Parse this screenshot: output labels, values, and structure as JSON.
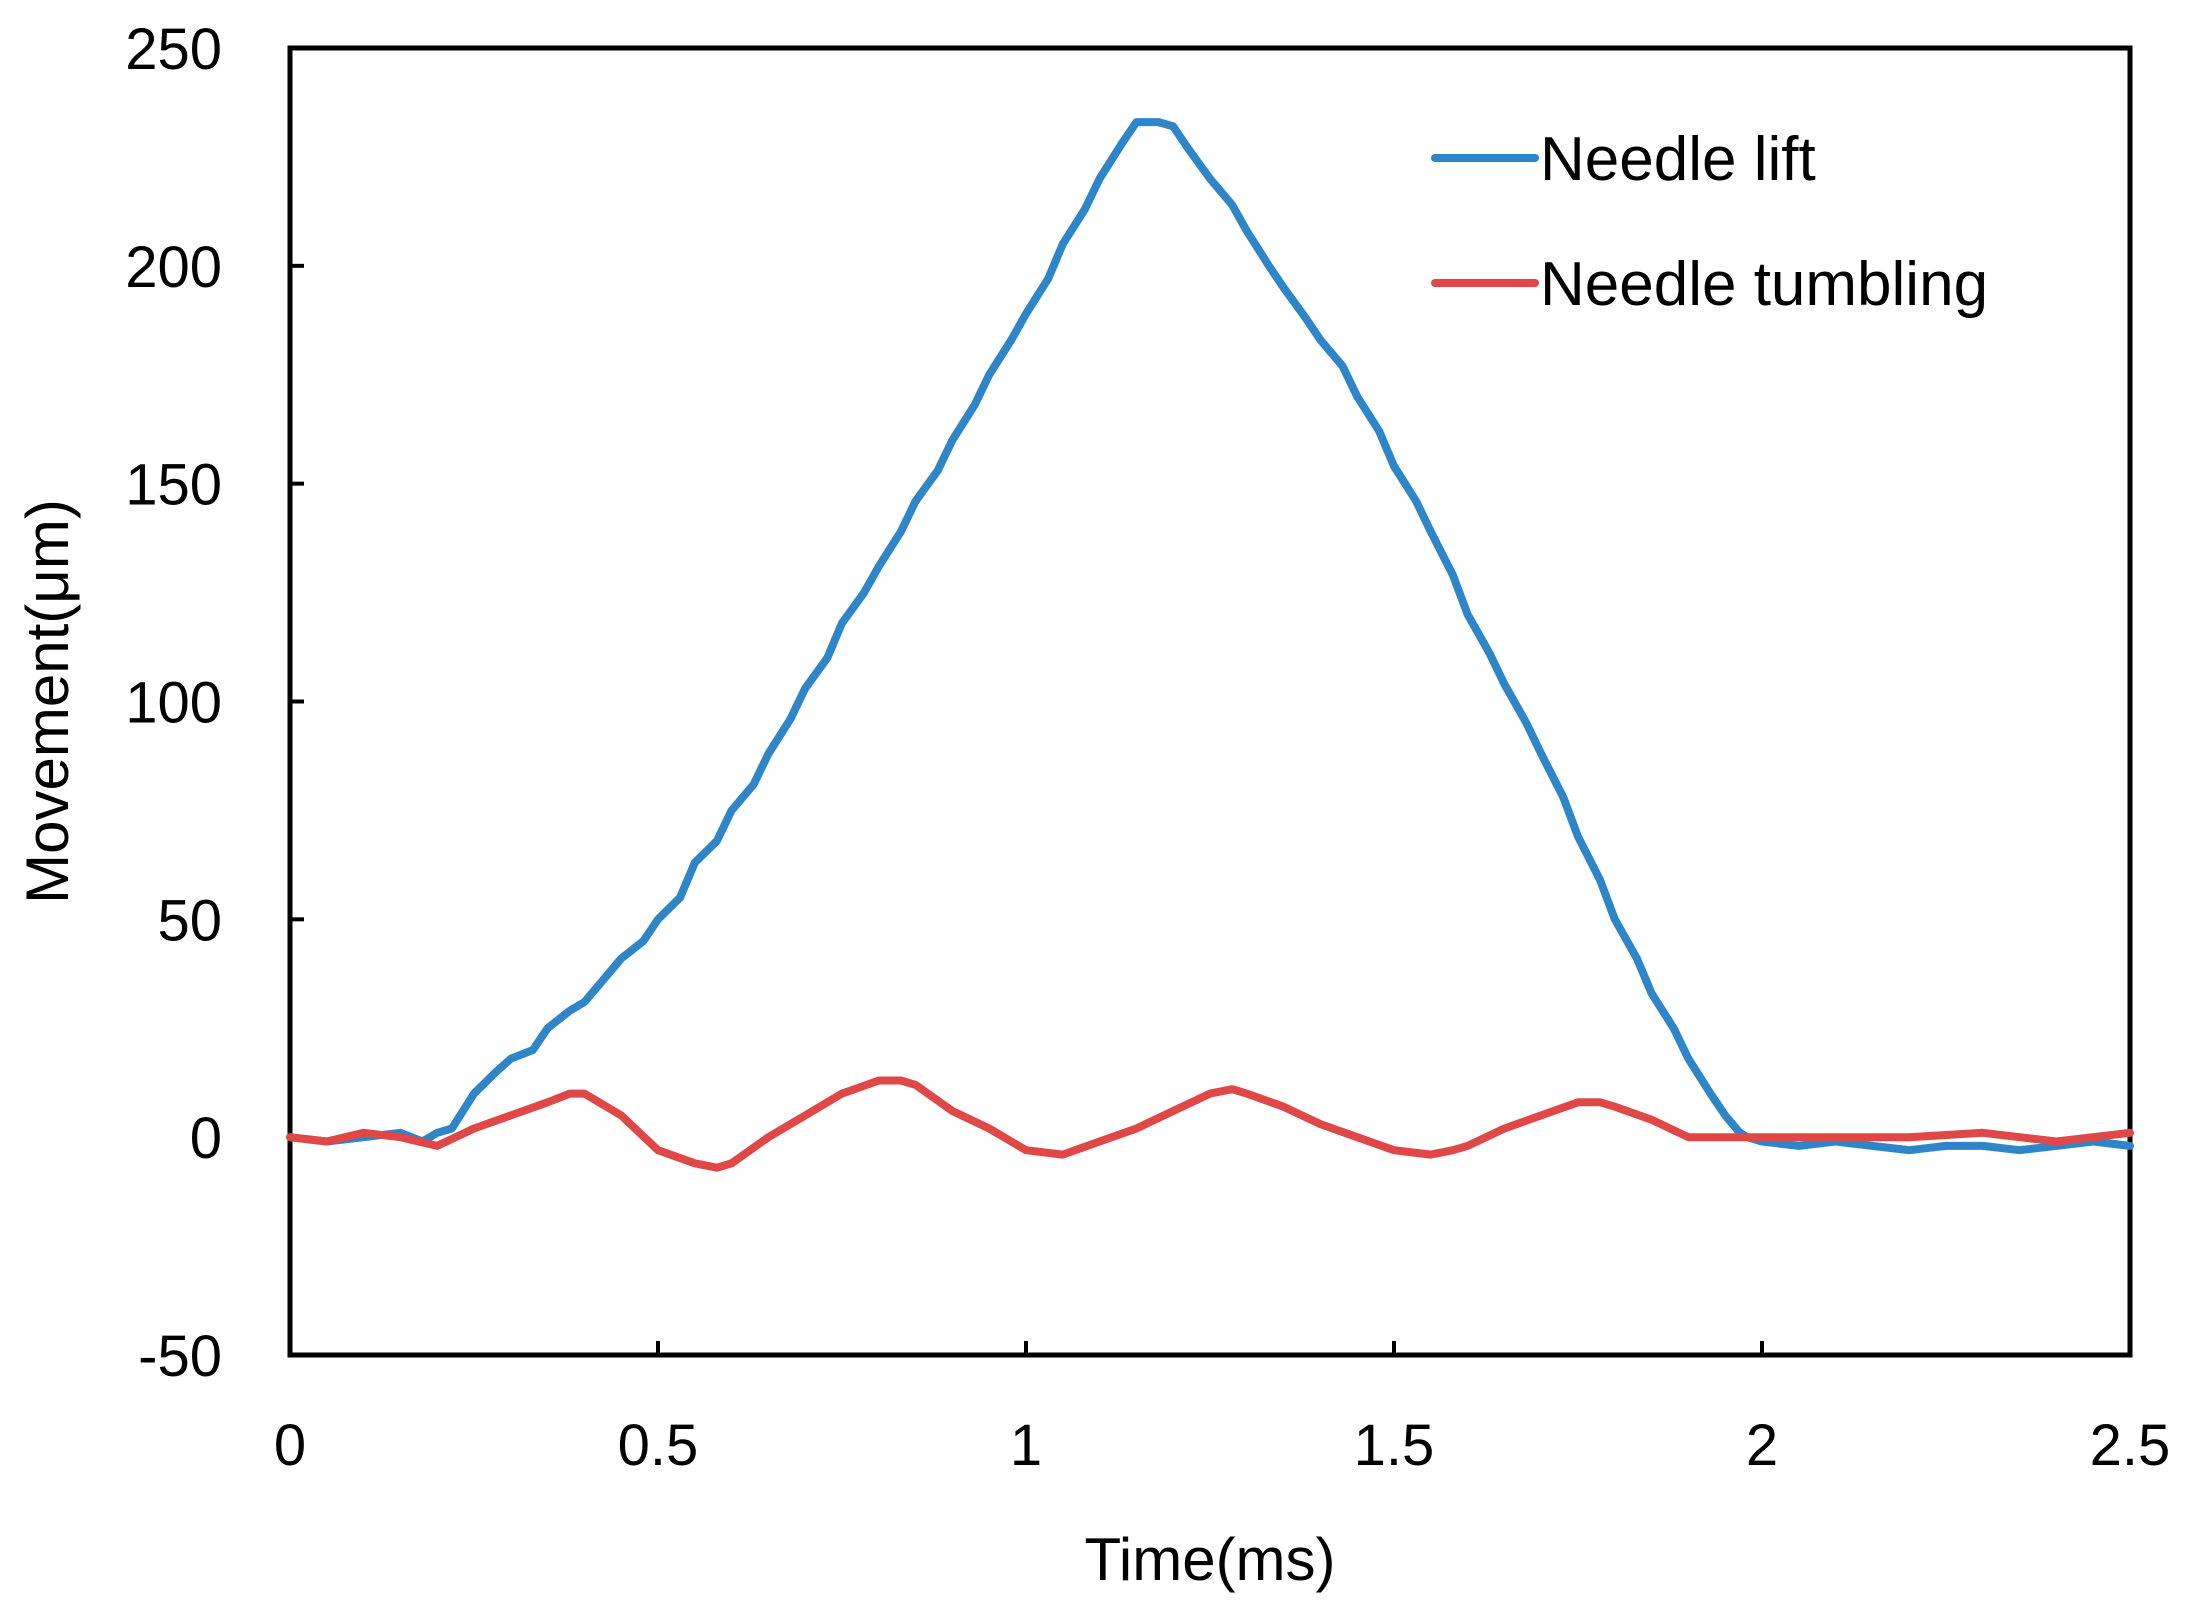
{
  "chart_data": {
    "type": "line",
    "title": "",
    "xlabel": "Time(ms)",
    "ylabel": "Movement(μm)",
    "xlim": [
      0,
      2.5
    ],
    "ylim": [
      -50,
      250
    ],
    "xticks": [
      0,
      0.5,
      1,
      1.5,
      2,
      2.5
    ],
    "xtick_labels": [
      "0",
      "0.5",
      "1",
      "1.5",
      "2",
      "2.5"
    ],
    "yticks": [
      -50,
      0,
      50,
      100,
      150,
      200,
      250
    ],
    "ytick_labels": [
      "-50",
      "0",
      "50",
      "100",
      "150",
      "200",
      "250"
    ],
    "grid": false,
    "legend_position": "top-right",
    "series": [
      {
        "name": "Needle lift",
        "color": "#2E86C8",
        "x": [
          0,
          0.05,
          0.1,
          0.15,
          0.18,
          0.2,
          0.22,
          0.25,
          0.28,
          0.3,
          0.33,
          0.35,
          0.38,
          0.4,
          0.43,
          0.45,
          0.48,
          0.5,
          0.53,
          0.55,
          0.58,
          0.6,
          0.63,
          0.65,
          0.68,
          0.7,
          0.73,
          0.75,
          0.78,
          0.8,
          0.83,
          0.85,
          0.88,
          0.9,
          0.93,
          0.95,
          0.98,
          1.0,
          1.03,
          1.05,
          1.08,
          1.1,
          1.13,
          1.15,
          1.18,
          1.2,
          1.22,
          1.25,
          1.28,
          1.3,
          1.33,
          1.35,
          1.38,
          1.4,
          1.43,
          1.45,
          1.48,
          1.5,
          1.53,
          1.55,
          1.58,
          1.6,
          1.63,
          1.65,
          1.68,
          1.7,
          1.73,
          1.75,
          1.78,
          1.8,
          1.83,
          1.85,
          1.88,
          1.9,
          1.93,
          1.95,
          1.97,
          1.98,
          2.0,
          2.05,
          2.1,
          2.15,
          2.2,
          2.25,
          2.3,
          2.35,
          2.4,
          2.45,
          2.5
        ],
        "values": [
          0,
          -1,
          0,
          1,
          -1,
          1,
          2,
          10,
          15,
          18,
          20,
          25,
          29,
          31,
          37,
          41,
          45,
          50,
          55,
          63,
          68,
          75,
          81,
          88,
          96,
          103,
          110,
          118,
          125,
          131,
          139,
          146,
          153,
          160,
          168,
          175,
          183,
          189,
          197,
          205,
          213,
          220,
          228,
          233,
          233,
          232,
          227,
          220,
          214,
          208,
          200,
          195,
          188,
          183,
          177,
          170,
          162,
          154,
          146,
          139,
          129,
          120,
          111,
          104,
          95,
          88,
          78,
          69,
          59,
          50,
          41,
          33,
          25,
          18,
          10,
          5,
          1,
          0,
          -1,
          -2,
          -1,
          -2,
          -3,
          -2,
          -2,
          -3,
          -2,
          -1,
          -2
        ]
      },
      {
        "name": "Needle tumbling",
        "color": "#E04848",
        "x": [
          0,
          0.05,
          0.1,
          0.15,
          0.2,
          0.25,
          0.3,
          0.35,
          0.38,
          0.4,
          0.45,
          0.5,
          0.55,
          0.58,
          0.6,
          0.65,
          0.7,
          0.75,
          0.8,
          0.83,
          0.85,
          0.9,
          0.95,
          1.0,
          1.05,
          1.1,
          1.15,
          1.2,
          1.25,
          1.28,
          1.3,
          1.35,
          1.4,
          1.45,
          1.5,
          1.55,
          1.58,
          1.6,
          1.65,
          1.7,
          1.75,
          1.78,
          1.8,
          1.85,
          1.9,
          1.95,
          2.0,
          2.1,
          2.2,
          2.3,
          2.4,
          2.5
        ],
        "values": [
          0,
          -1,
          1,
          0,
          -2,
          2,
          5,
          8,
          10,
          10,
          5,
          -3,
          -6,
          -7,
          -6,
          0,
          5,
          10,
          13,
          13,
          12,
          6,
          2,
          -3,
          -4,
          -1,
          2,
          6,
          10,
          11,
          10,
          7,
          3,
          0,
          -3,
          -4,
          -3,
          -2,
          2,
          5,
          8,
          8,
          7,
          4,
          0,
          0,
          0,
          0,
          0,
          1,
          -1,
          1
        ]
      }
    ]
  }
}
